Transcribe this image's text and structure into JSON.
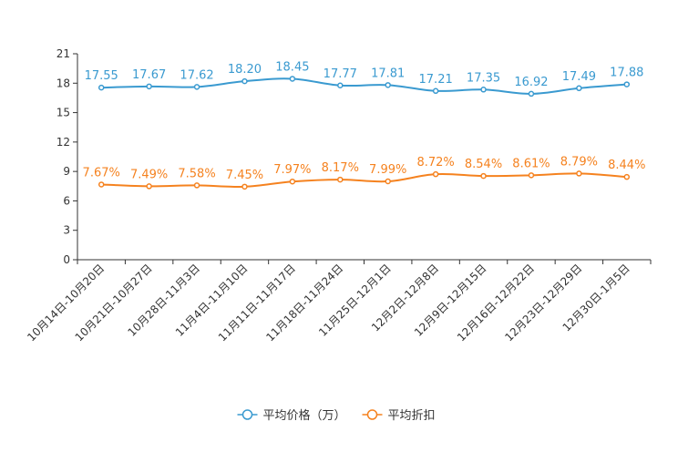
{
  "chart_data": {
    "type": "line",
    "title": "",
    "xlabel": "",
    "ylabel": "",
    "ylim": [
      0,
      21
    ],
    "yticks": [
      0,
      3,
      6,
      9,
      12,
      15,
      18,
      21
    ],
    "categories": [
      "10月14日-10月20日",
      "10月21日-10月27日",
      "10月28日-11月3日",
      "11月4日-11月10日",
      "11月11日-11月17日",
      "11月18日-11月24日",
      "11月25日-12月1日",
      "12月2日-12月8日",
      "12月9日-12月15日",
      "12月16日-12月22日",
      "12月23日-12月29日",
      "12月30日-1月5日"
    ],
    "series": [
      {
        "name": "平均价格（万）",
        "color": "#3a9ad0",
        "values": [
          17.55,
          17.67,
          17.62,
          18.2,
          18.45,
          17.77,
          17.81,
          17.21,
          17.35,
          16.92,
          17.49,
          17.88
        ],
        "labels": [
          "17.55",
          "17.67",
          "17.62",
          "18.20",
          "18.45",
          "17.77",
          "17.81",
          "17.21",
          "17.35",
          "16.92",
          "17.49",
          "17.88"
        ]
      },
      {
        "name": "平均折扣",
        "color": "#f5821f",
        "values": [
          7.67,
          7.49,
          7.58,
          7.45,
          7.97,
          8.17,
          7.99,
          8.72,
          8.54,
          8.61,
          8.79,
          8.44
        ],
        "labels": [
          "7.67%",
          "7.49%",
          "7.58%",
          "7.45%",
          "7.97%",
          "8.17%",
          "7.99%",
          "8.72%",
          "8.54%",
          "8.61%",
          "8.79%",
          "8.44%"
        ]
      }
    ],
    "legend": "bottom-center",
    "grid": false
  }
}
